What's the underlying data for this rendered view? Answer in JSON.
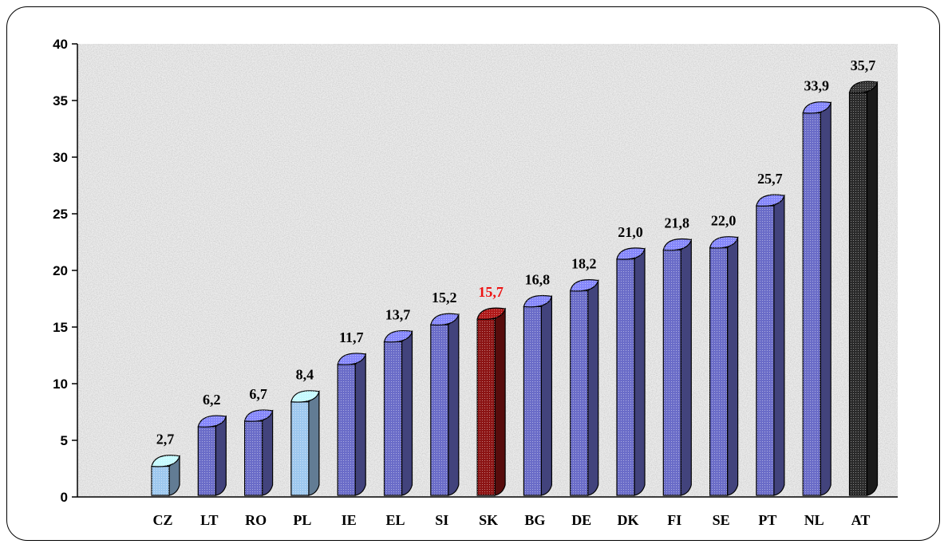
{
  "chart_data": {
    "type": "bar",
    "categories": [
      "CZ",
      "LT",
      "RO",
      "PL",
      "IE",
      "EL",
      "SI",
      "SK",
      "BG",
      "DE",
      "DK",
      "FI",
      "SE",
      "PT",
      "NL",
      "AT"
    ],
    "values": [
      2.7,
      6.2,
      6.7,
      8.4,
      11.7,
      13.7,
      15.2,
      15.7,
      16.8,
      18.2,
      21.0,
      21.8,
      22.0,
      25.7,
      33.9,
      35.7
    ],
    "value_labels": [
      "2,7",
      "6,2",
      "6,7",
      "8,4",
      "11,7",
      "13,7",
      "15,2",
      "15,7",
      "16,8",
      "18,2",
      "21,0",
      "21,8",
      "22,0",
      "25,7",
      "33,9",
      "35,7"
    ],
    "bar_colors": [
      "#9ec8ee",
      "#6a6cc8",
      "#6a6cc8",
      "#9ec8ee",
      "#6a6cc8",
      "#6a6cc8",
      "#6a6cc8",
      "#8c1414",
      "#6a6cc8",
      "#6a6cc8",
      "#6a6cc8",
      "#6a6cc8",
      "#6a6cc8",
      "#6a6cc8",
      "#6a6cc8",
      "#2a2a2a"
    ],
    "label_colors": [
      "#000000",
      "#000000",
      "#000000",
      "#000000",
      "#000000",
      "#000000",
      "#000000",
      "#ee1111",
      "#000000",
      "#000000",
      "#000000",
      "#000000",
      "#000000",
      "#000000",
      "#000000",
      "#000000"
    ],
    "yticks": [
      "0",
      "5",
      "10",
      "15",
      "20",
      "25",
      "30",
      "35",
      "40"
    ],
    "ylim": [
      0,
      40
    ],
    "title": "",
    "xlabel": "",
    "ylabel": "",
    "grid": false,
    "legend": "none"
  }
}
